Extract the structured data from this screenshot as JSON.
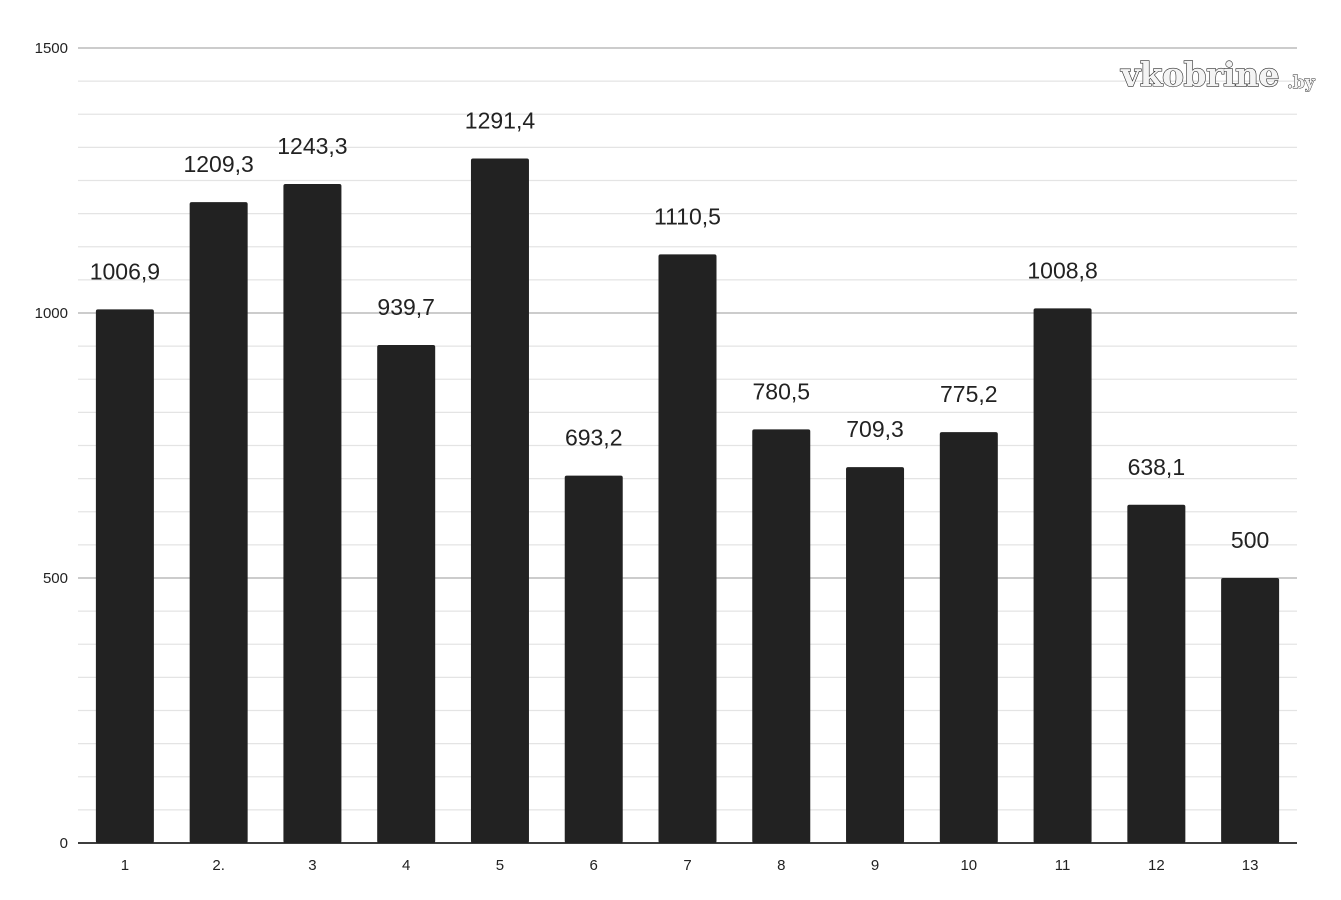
{
  "watermark": {
    "main": "vkobrine",
    "suffix": ".by"
  },
  "colors": {
    "bar": "#222222",
    "major_grid": "#bcbcbc",
    "minor_grid": "#e4e4e4",
    "axis": "#222222"
  },
  "chart_data": {
    "type": "bar",
    "title": "",
    "xlabel": "",
    "ylabel": "",
    "ylim": [
      0,
      1500
    ],
    "y_major_ticks": [
      0,
      500,
      1000,
      1500
    ],
    "y_minor_step": 62.5,
    "grid": true,
    "legend": "none",
    "categories": [
      "1",
      "2.",
      "3",
      "4",
      "5",
      "6",
      "7",
      "8",
      "9",
      "10",
      "11",
      "12",
      "13"
    ],
    "values": [
      1006.9,
      1209.3,
      1243.3,
      939.7,
      1291.4,
      693.2,
      1110.5,
      780.5,
      709.3,
      775.2,
      1008.8,
      638.1,
      500
    ],
    "data_labels": [
      "1006,9",
      "1209,3",
      "1243,3",
      "939,7",
      "1291,4",
      "693,2",
      "1110,5",
      "780,5",
      "709,3",
      "775,2",
      "1008,8",
      "638,1",
      "500"
    ]
  }
}
